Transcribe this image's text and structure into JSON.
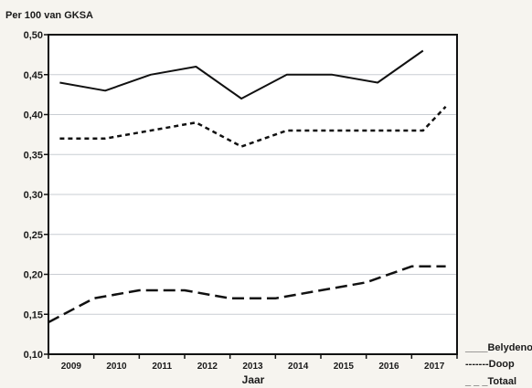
{
  "chart_data": {
    "type": "line",
    "title": "Per 100 van GKSA",
    "xlabel": "Jaar",
    "ylabel": "",
    "x": [
      2009,
      2010,
      2011,
      2012,
      2013,
      2014,
      2015,
      2016,
      2017
    ],
    "ylim": [
      0.1,
      0.5
    ],
    "yticks": [
      "0,10",
      "0,15",
      "0,20",
      "0,25",
      "0,30",
      "0,35",
      "0,40",
      "0,45",
      "0,50"
    ],
    "ytick_values": [
      0.1,
      0.15,
      0.2,
      0.25,
      0.3,
      0.35,
      0.4,
      0.45,
      0.5
    ],
    "grid": "horizontal",
    "legend_position": "bottom-right outside",
    "series": [
      {
        "name": "Belydenos",
        "legend_text": "____Belydenos",
        "style": "solid",
        "x": [
          2008.75,
          2009.75,
          2010.75,
          2011.75,
          2012.75,
          2013.75,
          2014.75,
          2015.75,
          2016.75
        ],
        "values": [
          0.44,
          0.43,
          0.45,
          0.46,
          0.42,
          0.45,
          0.45,
          0.44,
          0.48
        ]
      },
      {
        "name": "Doop",
        "legend_text": "-------Doop",
        "style": "dotted",
        "x": [
          2008.75,
          2009.75,
          2010.75,
          2011.75,
          2012.75,
          2013.75,
          2014.75,
          2015.75,
          2016.75,
          2017.25
        ],
        "values": [
          0.37,
          0.37,
          0.38,
          0.39,
          0.36,
          0.38,
          0.38,
          0.38,
          0.38,
          0.41
        ]
      },
      {
        "name": "Totaal",
        "legend_text": "_ _ _Totaal",
        "style": "dashed",
        "x": [
          2008.5,
          2009.5,
          2010.5,
          2011.5,
          2012.5,
          2013.5,
          2014.5,
          2015.5,
          2016.5,
          2017.25
        ],
        "values": [
          0.14,
          0.17,
          0.18,
          0.18,
          0.17,
          0.17,
          0.18,
          0.19,
          0.21,
          0.21
        ]
      }
    ],
    "colors": {
      "line": "#111111",
      "grid": "#c9cdd3",
      "background": "#f6f4ef",
      "plot_background": "#ffffff"
    }
  }
}
